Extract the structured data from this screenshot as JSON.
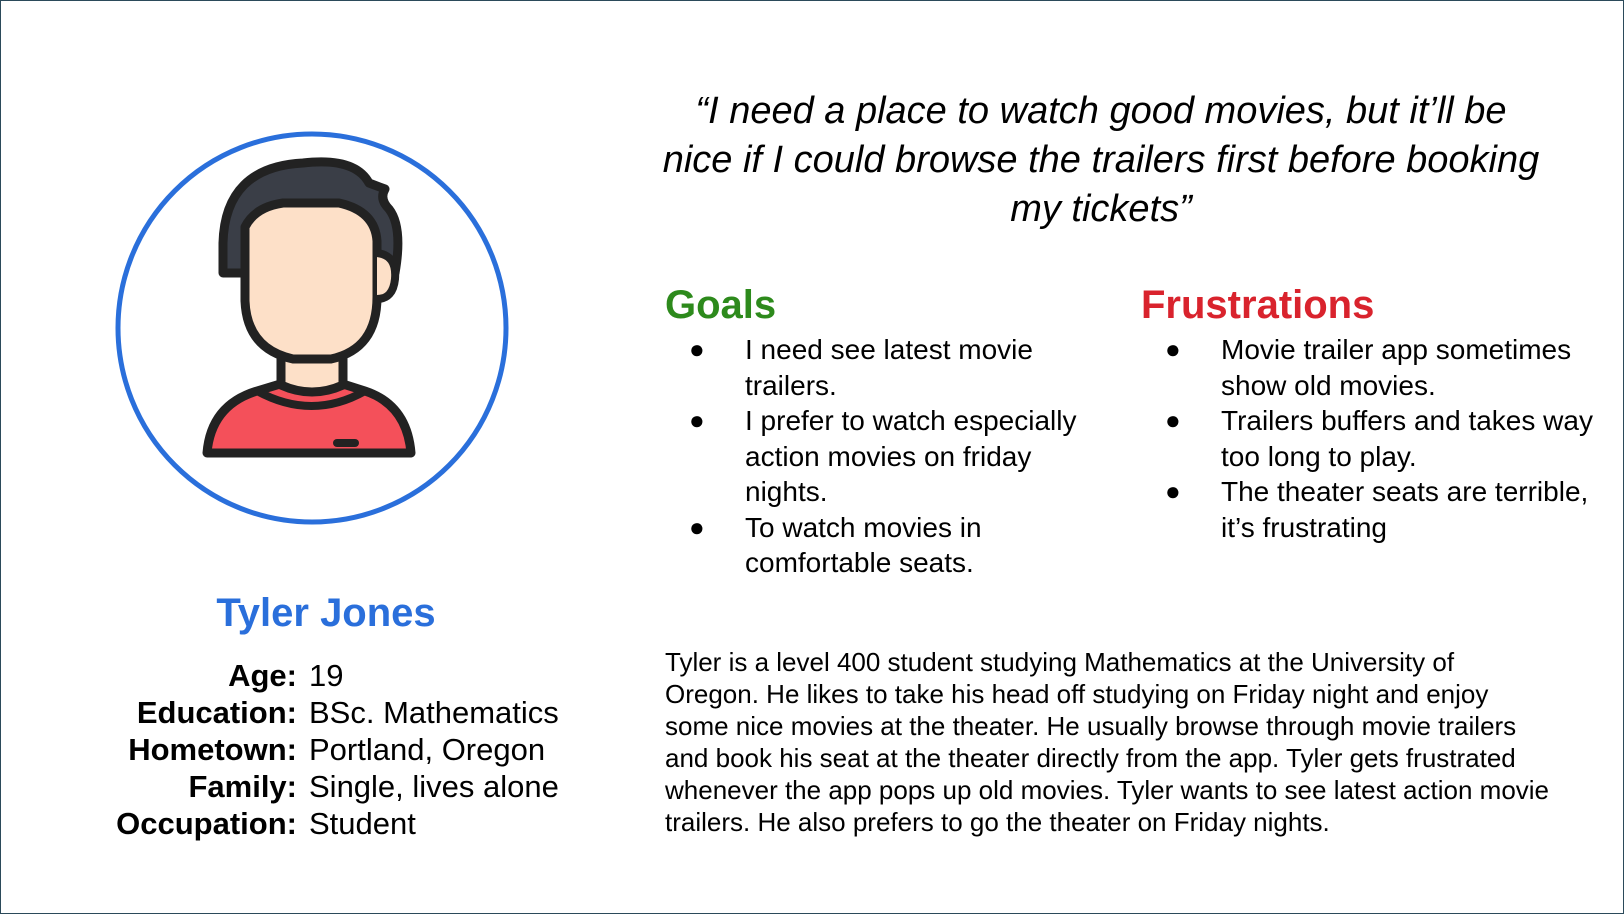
{
  "persona": {
    "name": "Tyler Jones",
    "details": [
      {
        "label": "Age:",
        "value": "19"
      },
      {
        "label": "Education:",
        "value": "BSc. Mathematics"
      },
      {
        "label": "Hometown:",
        "value": "Portland, Oregon"
      },
      {
        "label": "Family:",
        "value": "Single, lives alone"
      },
      {
        "label": "Occupation:",
        "value": "Student"
      }
    ]
  },
  "quote": "“I need a place to watch good movies, but it’ll be nice if I could browse the trailers first before booking my tickets”",
  "goals": {
    "title": "Goals",
    "items": [
      "I need see latest movie trailers.",
      "I prefer to watch especially action movies on friday nights.",
      "To watch movies in comfortable seats."
    ]
  },
  "frustrations": {
    "title": "Frustrations",
    "items": [
      "Movie trailer app sometimes show old movies.",
      "Trailers buffers and takes way too long to play.",
      "The theater seats are terrible, it’s frustrating"
    ]
  },
  "bio": "Tyler is a level 400 student studying Mathematics at the University of Oregon. He likes to take his head off studying on Friday night and enjoy some nice movies at the theater. He usually browse through movie trailers and book his seat at the theater directly from the app. Tyler gets frustrated whenever the app pops up old movies. Tyler wants to see latest action movie trailers. He also prefers to go the theater on Friday nights.",
  "colors": {
    "name": "#2a6fdb",
    "goals": "#2d8a1c",
    "frustrations": "#d9232d",
    "avatar_ring": "#2a6fdb",
    "shirt": "#f4505a",
    "skin": "#fde0c8",
    "hair": "#3a3e47"
  },
  "icons": {
    "avatar": "person-avatar-icon",
    "bullet": "bullet-dot"
  }
}
